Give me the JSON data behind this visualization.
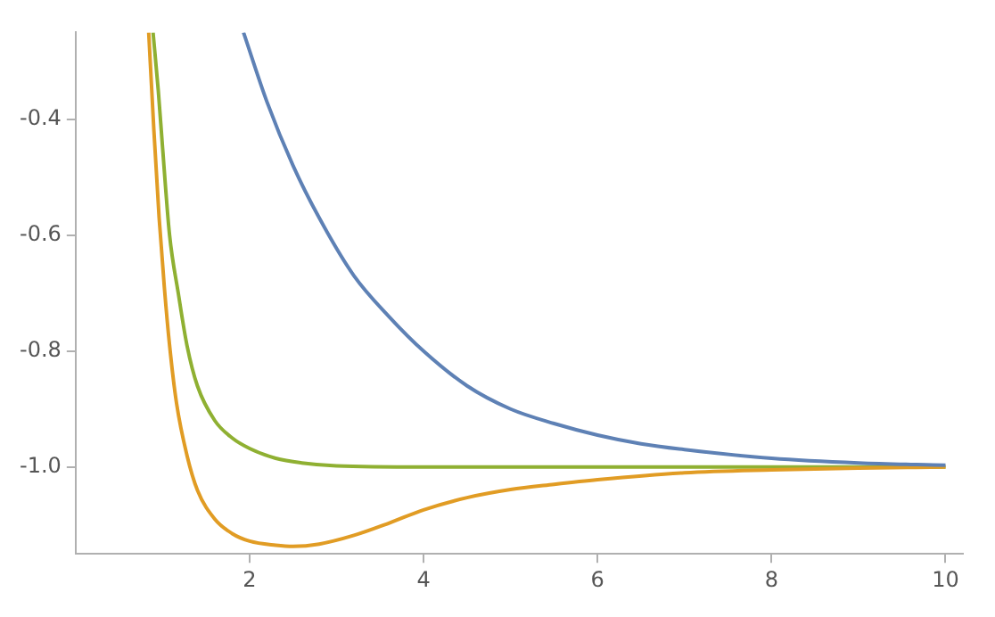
{
  "chart_data": {
    "type": "line",
    "xlim": [
      0,
      10.2
    ],
    "ylim": [
      -1.15,
      -0.25
    ],
    "xticks": [
      2,
      4,
      6,
      8,
      10
    ],
    "yticks": [
      {
        "value": -0.4,
        "label": "-0.4"
      },
      {
        "value": -0.6,
        "label": "-0.6"
      },
      {
        "value": -0.8,
        "label": "-0.8"
      },
      {
        "value": -1.0,
        "label": "-1.0"
      }
    ],
    "grid": false,
    "legend": false,
    "marker": "none",
    "line_style": "solid",
    "series": [
      {
        "color": "#5e81b5",
        "x": [
          1.93,
          2.2,
          2.5,
          2.8,
          3.2,
          3.6,
          4,
          4.5,
          5,
          5.5,
          6,
          6.5,
          7,
          8,
          9,
          10
        ],
        "values": [
          -0.25,
          -0.37,
          -0.48,
          -0.57,
          -0.67,
          -0.74,
          -0.8,
          -0.86,
          -0.9,
          -0.925,
          -0.945,
          -0.96,
          -0.97,
          -0.985,
          -0.993,
          -0.997
        ]
      },
      {
        "color": "#e19c24",
        "x": [
          0.84,
          0.9,
          0.96,
          1.02,
          1.08,
          1.16,
          1.28,
          1.4,
          1.6,
          1.8,
          2.0,
          2.3,
          2.5,
          2.8,
          3.2,
          3.6,
          4,
          4.5,
          5,
          5.5,
          6,
          7,
          8,
          9,
          10
        ],
        "values": [
          -0.25,
          -0.42,
          -0.57,
          -0.69,
          -0.79,
          -0.89,
          -0.98,
          -1.04,
          -1.09,
          -1.115,
          -1.128,
          -1.135,
          -1.137,
          -1.133,
          -1.118,
          -1.097,
          -1.074,
          -1.053,
          -1.039,
          -1.03,
          -1.022,
          -1.01,
          -1.005,
          -1.002,
          -1.0
        ]
      },
      {
        "color": "#8fb032",
        "x": [
          0.89,
          0.95,
          1.0,
          1.08,
          1.18,
          1.28,
          1.4,
          1.6,
          1.8,
          2.0,
          2.3,
          2.6,
          3,
          4,
          6,
          8,
          10
        ],
        "values": [
          -0.25,
          -0.35,
          -0.45,
          -0.6,
          -0.7,
          -0.79,
          -0.86,
          -0.92,
          -0.95,
          -0.968,
          -0.985,
          -0.993,
          -0.998,
          -1,
          -1,
          -1,
          -1
        ]
      }
    ]
  }
}
